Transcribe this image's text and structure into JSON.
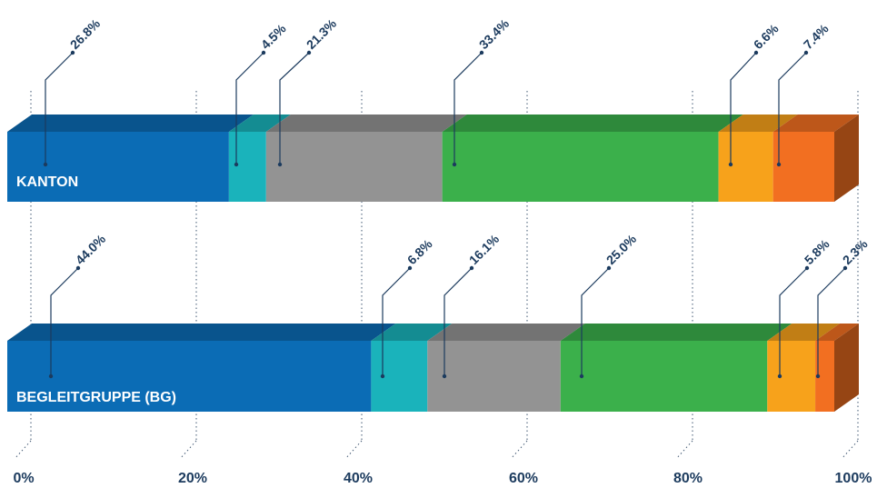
{
  "chart_data": {
    "type": "bar",
    "stacked": true,
    "orientation": "horizontal",
    "three_d": true,
    "categories": [
      "KANTON",
      "BEGLEITGRUPPE (BG)"
    ],
    "series_colors": [
      "#0b6cb5",
      "#1ab3bb",
      "#939393",
      "#3bb04b",
      "#f7a21b",
      "#f26f21"
    ],
    "series_values": [
      [
        26.8,
        44.0
      ],
      [
        4.5,
        6.8
      ],
      [
        21.3,
        16.1
      ],
      [
        33.4,
        25.0
      ],
      [
        6.6,
        5.8
      ],
      [
        7.4,
        2.3
      ]
    ],
    "value_labels": [
      [
        "26.8%",
        "4.5%",
        "21.3%",
        "33.4%",
        "6.6%",
        "7.4%"
      ],
      [
        "44.0%",
        "6.8%",
        "16.1%",
        "25.0%",
        "5.8%",
        "2.3%"
      ]
    ],
    "xlim": [
      0,
      100
    ],
    "x_ticks": [
      0,
      20,
      40,
      60,
      80,
      100
    ],
    "x_tick_labels": [
      "0%",
      "20%",
      "40%",
      "60%",
      "80%",
      "100%"
    ],
    "grid": "dotted-vertical",
    "legend": "none"
  }
}
